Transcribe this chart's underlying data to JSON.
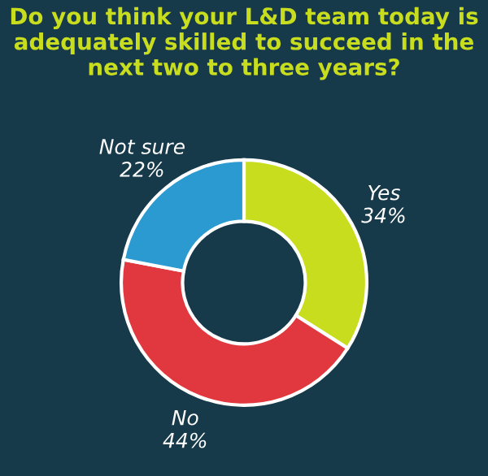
{
  "chart_data": {
    "type": "donut",
    "title": "Do you think your L&D team today is adequately skilled to succeed in the next two to three years?",
    "categories": [
      "Yes",
      "No",
      "Not sure"
    ],
    "values": [
      34,
      44,
      22
    ],
    "colors": [
      "#c9dd1f",
      "#e0383e",
      "#2a9ad0"
    ],
    "value_labels": [
      "34%",
      "44%",
      "22%"
    ],
    "legend": false
  }
}
